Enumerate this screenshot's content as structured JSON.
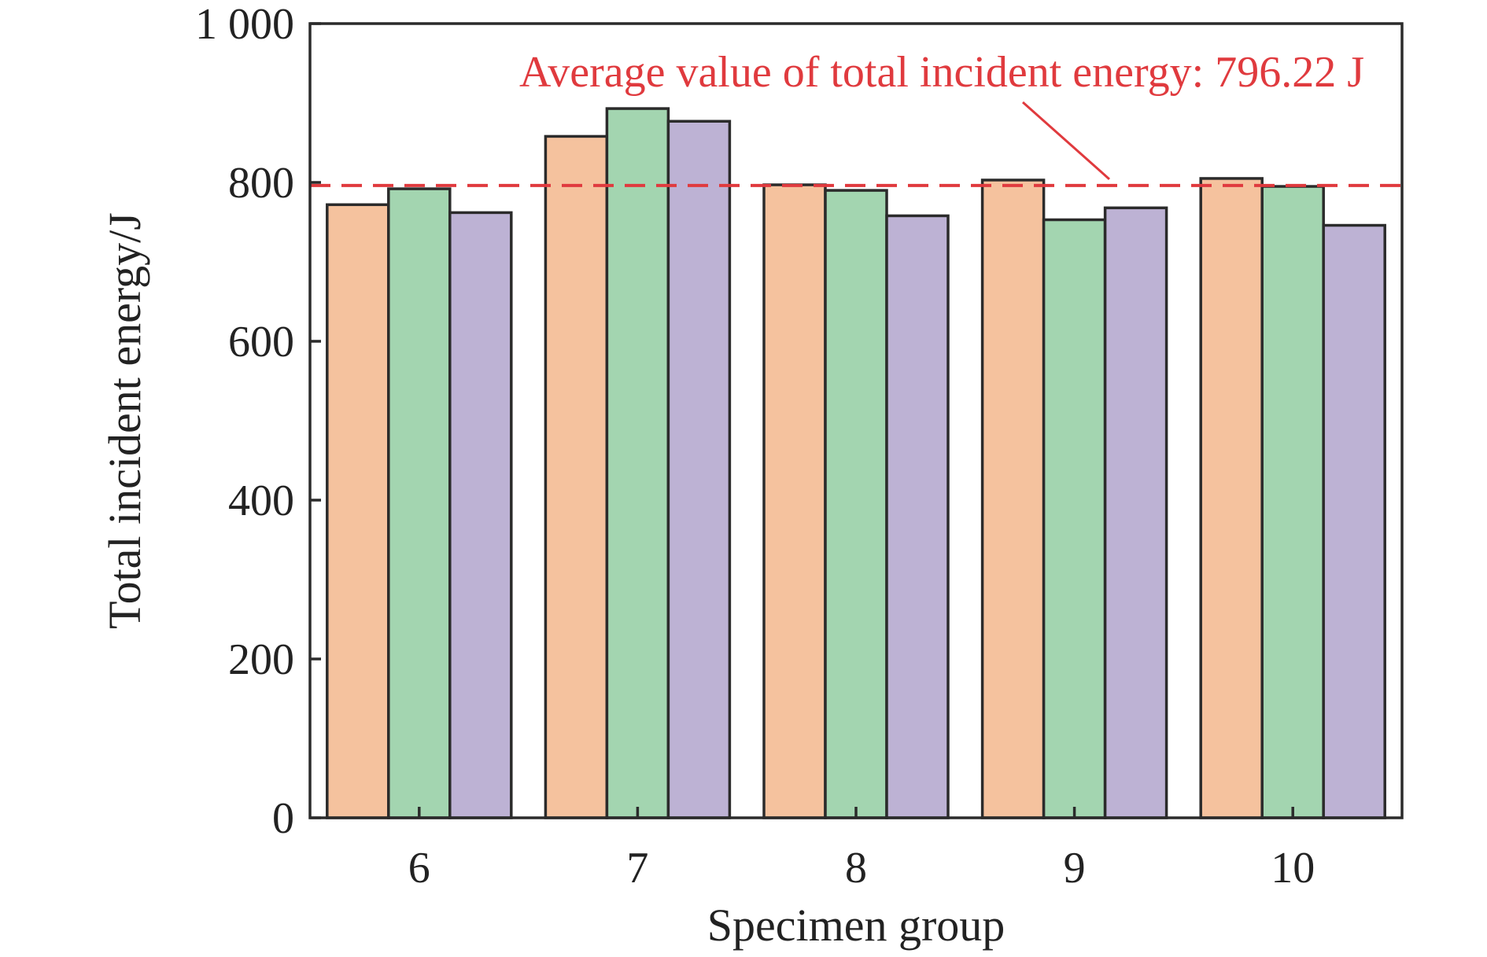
{
  "chart_data": {
    "type": "bar",
    "title": "",
    "xlabel": "Specimen group",
    "ylabel": "Total incident energy/J",
    "categories": [
      "6",
      "7",
      "8",
      "9",
      "10"
    ],
    "series": [
      {
        "values": [
          772,
          858,
          797,
          803,
          805
        ]
      },
      {
        "values": [
          792,
          893,
          790,
          753,
          795
        ]
      },
      {
        "values": [
          762,
          877,
          758,
          768,
          746
        ]
      }
    ],
    "series_colors": [
      "#f5c29e",
      "#a3d5b0",
      "#bdb2d4"
    ],
    "bar_outline_color": "#2b2b2b",
    "ylim": [
      0,
      1000
    ],
    "yticks": [
      0,
      200,
      400,
      600,
      800,
      1000
    ],
    "ytick_labels": [
      "0",
      "200",
      "400",
      "600",
      "800",
      "1 000"
    ],
    "grid": false,
    "legend": "none",
    "reference_line": {
      "value": 796.22,
      "style": "dashed",
      "color": "#e03a3e",
      "label": "Average value of total incident energy: 796.22 J"
    }
  }
}
